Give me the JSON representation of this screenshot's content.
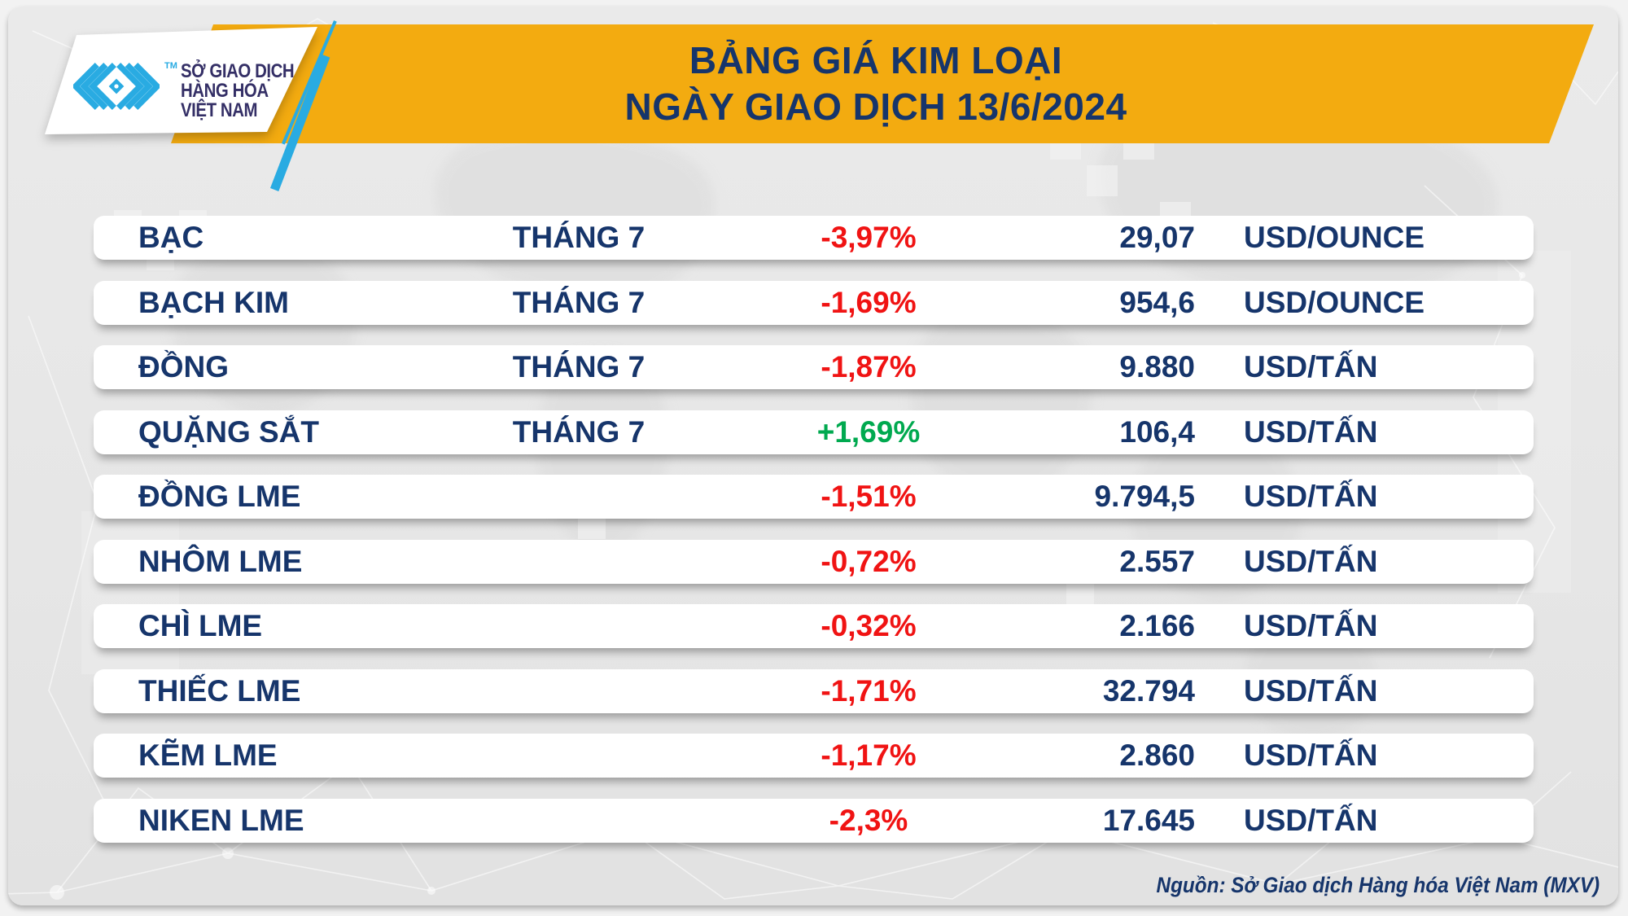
{
  "header": {
    "title_line1": "BẢNG GIÁ KIM LOẠI",
    "title_line2": "NGÀY GIAO DỊCH 13/6/2024"
  },
  "logo": {
    "mark": "mxv-chevrons-icon",
    "tm": "TM",
    "org_line1": "SỞ GIAO DỊCH",
    "org_line2": "HÀNG HÓA",
    "org_line3": "VIỆT NAM"
  },
  "table": {
    "rows": [
      {
        "name": "BẠC",
        "month": "THÁNG 7",
        "change": "-3,97%",
        "direction": "down",
        "price": "29,07",
        "unit": "USD/OUNCE"
      },
      {
        "name": "BẠCH KIM",
        "month": "THÁNG 7",
        "change": "-1,69%",
        "direction": "down",
        "price": "954,6",
        "unit": "USD/OUNCE"
      },
      {
        "name": "ĐỒNG",
        "month": "THÁNG 7",
        "change": "-1,87%",
        "direction": "down",
        "price": "9.880",
        "unit": "USD/TẤN"
      },
      {
        "name": "QUẶNG SẮT",
        "month": "THÁNG 7",
        "change": "+1,69%",
        "direction": "up",
        "price": "106,4",
        "unit": "USD/TẤN"
      },
      {
        "name": "ĐỒNG LME",
        "month": "",
        "change": "-1,51%",
        "direction": "down",
        "price": "9.794,5",
        "unit": "USD/TẤN"
      },
      {
        "name": "NHÔM LME",
        "month": "",
        "change": "-0,72%",
        "direction": "down",
        "price": "2.557",
        "unit": "USD/TẤN"
      },
      {
        "name": "CHÌ LME",
        "month": "",
        "change": "-0,32%",
        "direction": "down",
        "price": "2.166",
        "unit": "USD/TẤN"
      },
      {
        "name": "THIẾC LME",
        "month": "",
        "change": "-1,71%",
        "direction": "down",
        "price": "32.794",
        "unit": "USD/TẤN"
      },
      {
        "name": "KẼM LME",
        "month": "",
        "change": "-1,17%",
        "direction": "down",
        "price": "2.860",
        "unit": "USD/TẤN"
      },
      {
        "name": "NIKEN LME",
        "month": "",
        "change": "-2,3%",
        "direction": "down",
        "price": "17.645",
        "unit": "USD/TẤN"
      }
    ]
  },
  "footer": {
    "source": "Nguồn: Sở Giao dịch Hàng hóa Việt Nam (MXV)"
  },
  "colors": {
    "yellow": "#F3AB10",
    "navy": "#16356B",
    "red": "#F01313",
    "green": "#00A94F",
    "cyan": "#29ABE2",
    "indigo": "#342F66"
  },
  "chart_data": {
    "type": "table",
    "title": "BẢNG GIÁ KIM LOẠI",
    "subtitle": "NGÀY GIAO DỊCH 13/6/2024",
    "rows": [
      {
        "name": "BẠC",
        "month": "THÁNG 7",
        "change_pct": -3.97,
        "price": 29.07,
        "unit": "USD/OUNCE"
      },
      {
        "name": "BẠCH KIM",
        "month": "THÁNG 7",
        "change_pct": -1.69,
        "price": 954.6,
        "unit": "USD/OUNCE"
      },
      {
        "name": "ĐỒNG",
        "month": "THÁNG 7",
        "change_pct": -1.87,
        "price": 9880,
        "unit": "USD/TẤN"
      },
      {
        "name": "QUẶNG SẮT",
        "month": "THÁNG 7",
        "change_pct": 1.69,
        "price": 106.4,
        "unit": "USD/TẤN"
      },
      {
        "name": "ĐỒNG LME",
        "month": null,
        "change_pct": -1.51,
        "price": 9794.5,
        "unit": "USD/TẤN"
      },
      {
        "name": "NHÔM LME",
        "month": null,
        "change_pct": -0.72,
        "price": 2557,
        "unit": "USD/TẤN"
      },
      {
        "name": "CHÌ LME",
        "month": null,
        "change_pct": -0.32,
        "price": 2166,
        "unit": "USD/TẤN"
      },
      {
        "name": "THIẾC LME",
        "month": null,
        "change_pct": -1.71,
        "price": 32794,
        "unit": "USD/TẤN"
      },
      {
        "name": "KẼM LME",
        "month": null,
        "change_pct": -1.17,
        "price": 2860,
        "unit": "USD/TẤN"
      },
      {
        "name": "NIKEN LME",
        "month": null,
        "change_pct": -2.3,
        "price": 17645,
        "unit": "USD/TẤN"
      }
    ],
    "source": "Nguồn: Sở Giao dịch Hàng hóa Việt Nam (MXV)"
  }
}
